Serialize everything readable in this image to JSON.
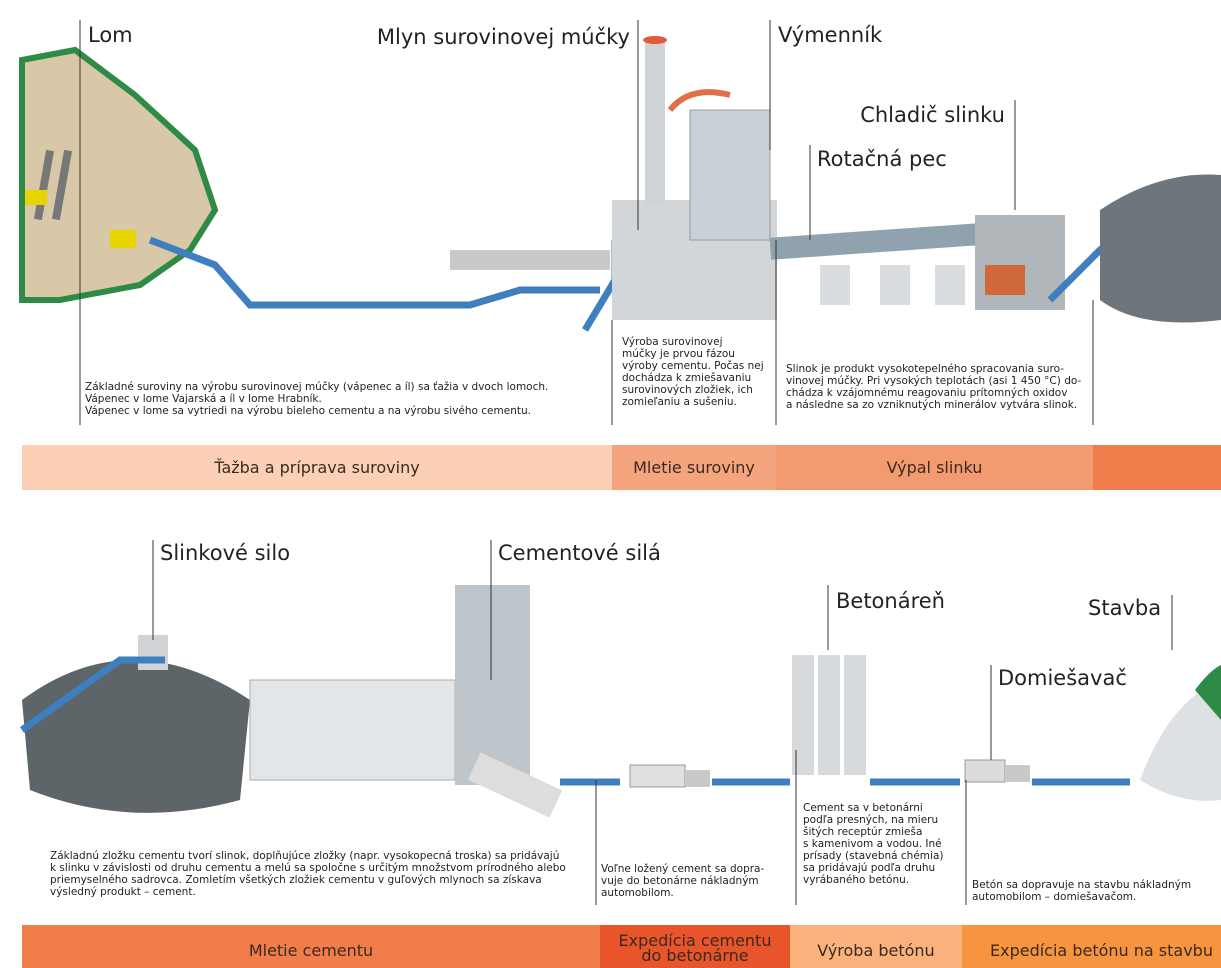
{
  "top": {
    "labels": [
      "Lom",
      "Mlyn surovinovej múčky",
      "Výmenník",
      "Chladič slinku",
      "Rotačná pec"
    ],
    "descriptions": [
      [
        "Základné suroviny na výrobu surovinovej múčky (vápenec a íl) sa ťažia v dvoch lomoch.",
        "Vápenec v lome Vajarská a íl v lome Hrabník.",
        "Vápenec v lome sa vytriedi na výrobu bieleho cementu a na výrobu sivého cementu."
      ],
      [
        "Výroba surovinovej",
        "múčky je prvou fázou",
        "výroby cementu. Počas nej",
        "dochádza k zmiešavaniu",
        "surovinových zložiek, ich",
        "zomieľaniu a sušeniu."
      ],
      [
        "Slinok je produkt vysokotepelného spracovania suro-",
        "vinovej múčky. Pri vysokých teplotách (asi 1 450 °C) do-",
        "chádza k vzájomnému reagovaniu prítomných oxidov",
        "a následne sa zo vzniknutých minerálov vytvára slinok."
      ]
    ],
    "stages": [
      "Ťažba a príprava suroviny",
      "Mletie suroviny",
      "Výpal slinku"
    ]
  },
  "bottom": {
    "labels": [
      "Slinkové silo",
      "Cementové silá",
      "Betonáreň",
      "Stavba",
      "Domiešavač"
    ],
    "descriptions": [
      [
        "Základnú zložku cementu tvorí slinok, doplňujúce zložky (napr. vysokopecná troska) sa pridávajú",
        "k slinku v závislosti od druhu cementu a melú sa spoločne s určitým množstvom prírodného alebo",
        "priemyselného sadrovca. Zomletím všetkých zložiek cementu v guľových mlynoch sa získava",
        "výsledný produkt – cement."
      ],
      [
        "Voľne ložený cement sa dopra-",
        "vuje do betonárne nákladným",
        "automobilom."
      ],
      [
        "Cement sa v betonárni",
        "podľa presných, na mieru",
        "šitých receptúr zmieša",
        "s kamenivom a vodou. Iné",
        "prísady (stavebná chémia)",
        "sa pridávajú podľa druhu",
        "vyrábaného betónu."
      ],
      [
        "Betón sa dopravuje na stavbu nákladným",
        "automobilom – domiešavačom."
      ]
    ],
    "stages": [
      [
        "Mletie cementu"
      ],
      [
        "Expedícia cementu",
        "do betonárne"
      ],
      [
        "Výroba betónu"
      ],
      [
        "Expedícia betónu na stavbu"
      ]
    ]
  }
}
